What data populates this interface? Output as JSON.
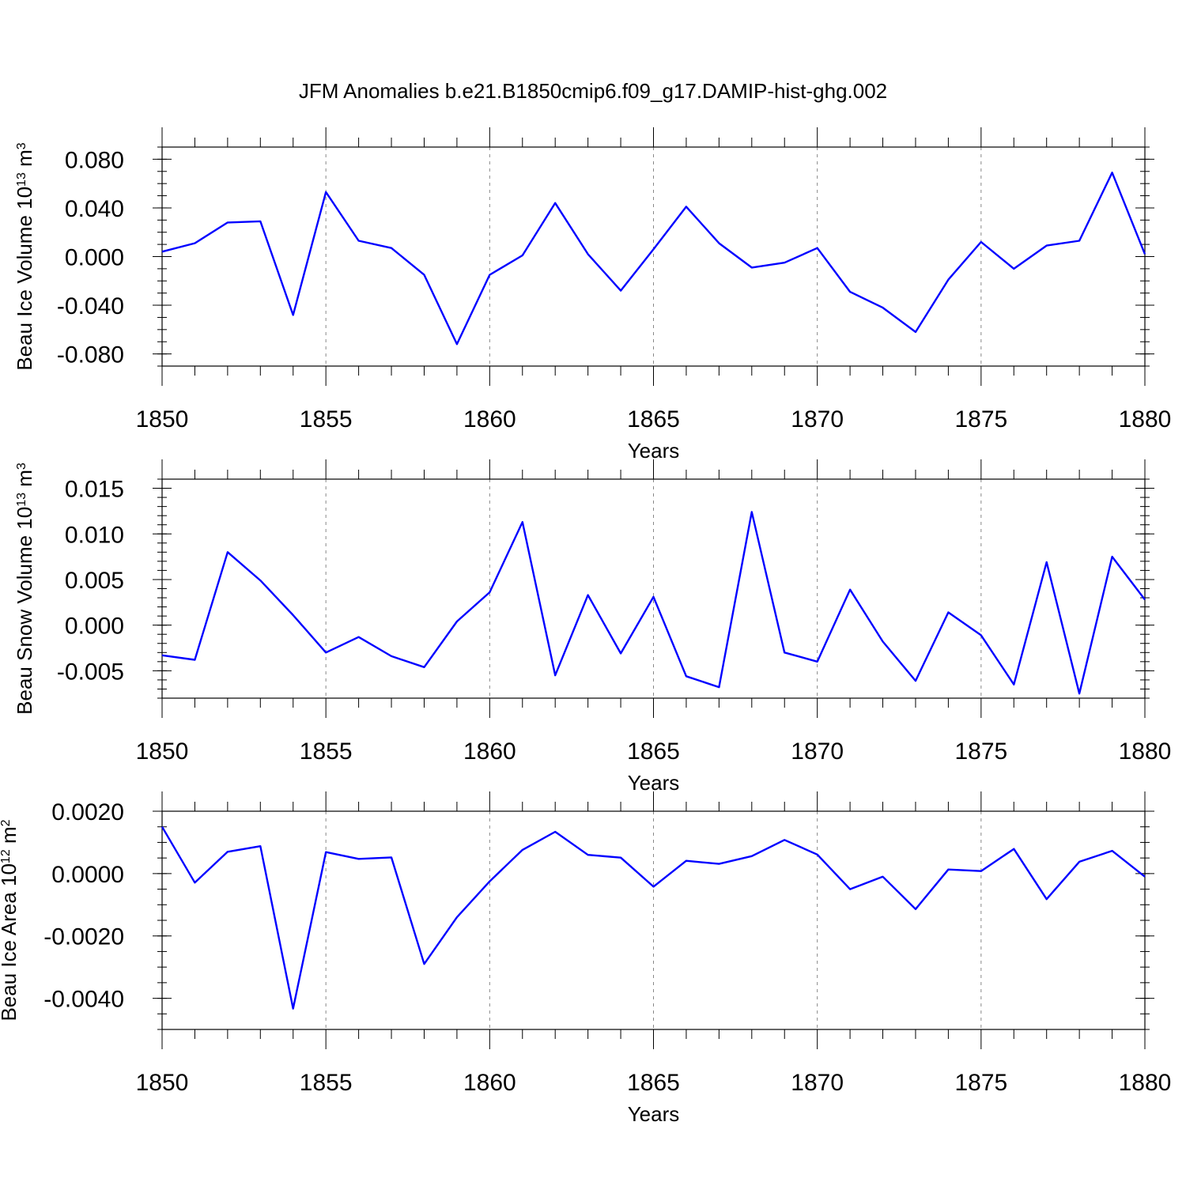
{
  "title": "JFM Anomalies b.e21.B1850cmip6.f09_g17.DAMIP-hist-ghg.002",
  "chart_data": [
    {
      "type": "line",
      "ylabel": "Beau Ice Volume",
      "yunit_base": "10",
      "yunit_exp": "13",
      "yunit_unit": "m",
      "yunit_unit_exp": "3",
      "xlabel": "Years",
      "xlim": [
        1850,
        1880
      ],
      "ylim": [
        -0.09,
        0.09
      ],
      "xticks": [
        1850,
        1855,
        1860,
        1865,
        1870,
        1875,
        1880
      ],
      "xtick_labels": [
        "1850",
        "1855",
        "1860",
        "1865",
        "1870",
        "1875",
        "1880"
      ],
      "yticks": [
        -0.08,
        -0.04,
        0.0,
        0.04,
        0.08
      ],
      "ytick_labels": [
        "-0.080",
        "-0.040",
        "0.000",
        "0.040",
        "0.080"
      ],
      "yminor_step": 0.01,
      "grid": "vertical dashed at major x ticks",
      "series": [
        {
          "name": "Beau Ice Volume",
          "color": "#0000ff",
          "x": [
            1850,
            1851,
            1852,
            1853,
            1854,
            1855,
            1856,
            1857,
            1858,
            1859,
            1860,
            1861,
            1862,
            1863,
            1864,
            1865,
            1866,
            1867,
            1868,
            1869,
            1870,
            1871,
            1872,
            1873,
            1874,
            1875,
            1876,
            1877,
            1878,
            1879,
            1880
          ],
          "values": [
            0.004,
            0.011,
            0.028,
            0.029,
            -0.048,
            0.053,
            0.013,
            0.007,
            -0.015,
            -0.072,
            -0.015,
            0.001,
            0.044,
            0.002,
            -0.028,
            0.006,
            0.041,
            0.011,
            -0.009,
            -0.005,
            0.007,
            -0.029,
            -0.042,
            -0.062,
            -0.019,
            0.012,
            -0.01,
            0.009,
            0.013,
            0.069,
            0.002
          ]
        }
      ]
    },
    {
      "type": "line",
      "ylabel": "Beau Snow Volume",
      "yunit_base": "10",
      "yunit_exp": "13",
      "yunit_unit": "m",
      "yunit_unit_exp": "3",
      "xlabel": "Years",
      "xlim": [
        1850,
        1880
      ],
      "ylim": [
        -0.008,
        0.016
      ],
      "xticks": [
        1850,
        1855,
        1860,
        1865,
        1870,
        1875,
        1880
      ],
      "xtick_labels": [
        "1850",
        "1855",
        "1860",
        "1865",
        "1870",
        "1875",
        "1880"
      ],
      "yticks": [
        -0.005,
        0.0,
        0.005,
        0.01,
        0.015
      ],
      "ytick_labels": [
        "-0.005",
        "0.000",
        "0.005",
        "0.010",
        "0.015"
      ],
      "yminor_step": 0.001,
      "grid": "vertical dashed at major x ticks",
      "series": [
        {
          "name": "Beau Snow Volume",
          "color": "#0000ff",
          "x": [
            1850,
            1851,
            1852,
            1853,
            1854,
            1855,
            1856,
            1857,
            1858,
            1859,
            1860,
            1861,
            1862,
            1863,
            1864,
            1865,
            1866,
            1867,
            1868,
            1869,
            1870,
            1871,
            1872,
            1873,
            1874,
            1875,
            1876,
            1877,
            1878,
            1879,
            1880
          ],
          "values": [
            -0.0033,
            -0.0038,
            0.008,
            0.0049,
            0.0011,
            -0.003,
            -0.0013,
            -0.0034,
            -0.0046,
            0.0004,
            0.0036,
            0.0113,
            -0.0055,
            0.0033,
            -0.0031,
            0.0031,
            -0.0056,
            -0.0068,
            0.0124,
            -0.003,
            -0.004,
            0.0039,
            -0.0018,
            -0.0061,
            0.0014,
            -0.0011,
            -0.0065,
            0.0069,
            -0.0075,
            0.0075,
            0.0028
          ]
        }
      ]
    },
    {
      "type": "line",
      "ylabel": "Beau Ice Area",
      "yunit_base": "10",
      "yunit_exp": "12",
      "yunit_unit": "m",
      "yunit_unit_exp": "2",
      "xlabel": "Years",
      "xlim": [
        1850,
        1880
      ],
      "ylim": [
        -0.005,
        0.002
      ],
      "xticks": [
        1850,
        1855,
        1860,
        1865,
        1870,
        1875,
        1880
      ],
      "xtick_labels": [
        "1850",
        "1855",
        "1860",
        "1865",
        "1870",
        "1875",
        "1880"
      ],
      "yticks": [
        -0.004,
        -0.002,
        0.0,
        0.002
      ],
      "ytick_labels": [
        "-0.0040",
        "-0.0020",
        "0.0000",
        "0.0020"
      ],
      "yminor_step": 0.0005,
      "grid": "vertical dashed at major x ticks",
      "series": [
        {
          "name": "Beau Ice Area",
          "color": "#0000ff",
          "x": [
            1850,
            1851,
            1852,
            1853,
            1854,
            1855,
            1856,
            1857,
            1858,
            1859,
            1860,
            1861,
            1862,
            1863,
            1864,
            1865,
            1866,
            1867,
            1868,
            1869,
            1870,
            1871,
            1872,
            1873,
            1874,
            1875,
            1876,
            1877,
            1878,
            1879,
            1880
          ],
          "values": [
            0.0015,
            -0.00029,
            0.0007,
            0.00088,
            -0.00433,
            0.00069,
            0.00047,
            0.00052,
            -0.0029,
            -0.0014,
            -0.00025,
            0.00076,
            0.00134,
            0.0006,
            0.00051,
            -0.00042,
            0.00041,
            0.00031,
            0.00056,
            0.00108,
            0.00061,
            -0.0005,
            -0.0001,
            -0.00114,
            0.00013,
            8e-05,
            0.00079,
            -0.00082,
            0.00038,
            0.00073,
            -0.0001
          ]
        }
      ]
    }
  ]
}
